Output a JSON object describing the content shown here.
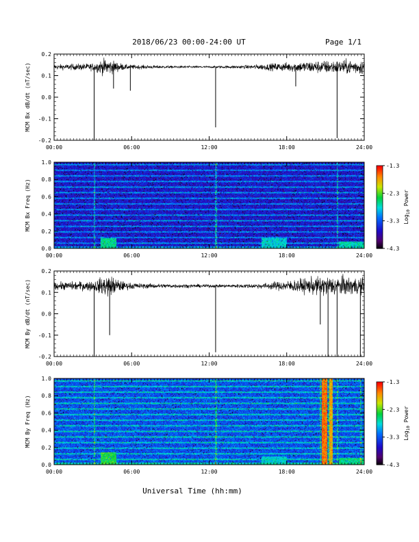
{
  "header": {
    "title": "2018/06/23  00:00-24:00 UT",
    "page": "Page 1/1"
  },
  "footer": {
    "xlabel": "Universal Time (hh:mm)"
  },
  "time_ticks": [
    "00:00",
    "06:00",
    "12:00",
    "18:00",
    "24:00"
  ],
  "colorbar": {
    "label_main": "Log",
    "label_sub": "10",
    "label_end": " Power",
    "ticks": [
      "-1.3",
      "-2.3",
      "-3.3",
      "-4.3"
    ],
    "range": [
      -4.3,
      -1.3
    ]
  },
  "chart_data": [
    {
      "type": "line",
      "ylabel": "MCM Bx dB/dt (nT/sec)",
      "x_unit": "hours UT",
      "xlim": [
        0,
        24
      ],
      "ylim": [
        -0.2,
        0.2
      ],
      "yticks": [
        "0.2",
        "0.1",
        "0.0",
        "-0.1",
        "-0.2"
      ],
      "baseline": 0.14,
      "noise_envelope": [
        {
          "x": 0,
          "amp": 0.02
        },
        {
          "x": 3,
          "amp": 0.03
        },
        {
          "x": 4,
          "amp": 0.07
        },
        {
          "x": 5.5,
          "amp": 0.02
        },
        {
          "x": 7,
          "amp": 0.015
        },
        {
          "x": 9,
          "amp": 0.01
        },
        {
          "x": 12,
          "amp": 0.008
        },
        {
          "x": 15,
          "amp": 0.015
        },
        {
          "x": 17,
          "amp": 0.03
        },
        {
          "x": 20,
          "amp": 0.05
        },
        {
          "x": 24,
          "amp": 0.06
        }
      ],
      "spikes": [
        {
          "x": 3.1,
          "y": -0.21
        },
        {
          "x": 4.6,
          "y": 0.04
        },
        {
          "x": 5.9,
          "y": 0.03
        },
        {
          "x": 12.5,
          "y": -0.14
        },
        {
          "x": 18.7,
          "y": 0.05
        },
        {
          "x": 21.9,
          "y": -0.19
        }
      ]
    },
    {
      "type": "heatmap",
      "ylabel": "MCM Bx Freq (Hz)",
      "xlim": [
        0,
        24
      ],
      "ylim": [
        0,
        1.0
      ],
      "yticks": [
        "1.0",
        "0.8",
        "0.6",
        "0.4",
        "0.2",
        "0.0"
      ],
      "zlabel": "Log10 Power",
      "zlim": [
        -4.3,
        -1.3
      ],
      "background_level": -3.6,
      "harmonic_lines_hz": [
        0.065,
        0.13,
        0.195,
        0.26,
        0.325,
        0.39,
        0.455,
        0.52,
        0.585,
        0.65,
        0.715,
        0.78,
        0.845,
        0.91,
        0.975
      ],
      "low_freq_enhancements": [
        {
          "x_center": 4.2,
          "x_width": 1.2,
          "max_hz": 0.12,
          "level": -2.6
        },
        {
          "x_center": 17.0,
          "x_width": 2.0,
          "max_hz": 0.12,
          "level": -2.8
        },
        {
          "x_center": 23.0,
          "x_width": 2.0,
          "max_hz": 0.08,
          "level": -2.7
        }
      ],
      "broadband_streaks": [
        3.1,
        12.5,
        21.9
      ]
    },
    {
      "type": "line",
      "ylabel": "MCM By dB/dt (nT/sec)",
      "x_unit": "hours UT",
      "xlim": [
        0,
        24
      ],
      "ylim": [
        -0.2,
        0.2
      ],
      "yticks": [
        "0.2",
        "0.1",
        "0.0",
        "-0.1",
        "-0.2"
      ],
      "baseline": 0.13,
      "noise_envelope": [
        {
          "x": 0,
          "amp": 0.03
        },
        {
          "x": 3,
          "amp": 0.04
        },
        {
          "x": 4.2,
          "amp": 0.09
        },
        {
          "x": 5.5,
          "amp": 0.03
        },
        {
          "x": 7,
          "amp": 0.02
        },
        {
          "x": 10,
          "amp": 0.015
        },
        {
          "x": 13,
          "amp": 0.012
        },
        {
          "x": 16,
          "amp": 0.02
        },
        {
          "x": 18.5,
          "amp": 0.05
        },
        {
          "x": 21,
          "amp": 0.08
        },
        {
          "x": 24,
          "amp": 0.07
        }
      ],
      "spikes": [
        {
          "x": 3.1,
          "y": -0.21
        },
        {
          "x": 4.3,
          "y": -0.1
        },
        {
          "x": 12.5,
          "y": -0.18
        },
        {
          "x": 20.6,
          "y": -0.05
        },
        {
          "x": 21.2,
          "y": -0.21
        },
        {
          "x": 21.9,
          "y": -0.21
        },
        {
          "x": 23.7,
          "y": -0.21
        }
      ]
    },
    {
      "type": "heatmap",
      "ylabel": "MCM By Freq (Hz)",
      "xlim": [
        0,
        24
      ],
      "ylim": [
        0,
        1.0
      ],
      "yticks": [
        "1.0",
        "0.8",
        "0.6",
        "0.4",
        "0.2",
        "0.0"
      ],
      "zlabel": "Log10 Power",
      "zlim": [
        -4.3,
        -1.3
      ],
      "background_level": -3.3,
      "harmonic_lines_hz": [
        0.065,
        0.13,
        0.195,
        0.26,
        0.325,
        0.39,
        0.455,
        0.52,
        0.585,
        0.65,
        0.715,
        0.78,
        0.845,
        0.91,
        0.975
      ],
      "low_freq_enhancements": [
        {
          "x_center": 4.2,
          "x_width": 1.2,
          "max_hz": 0.15,
          "level": -2.4
        },
        {
          "x_center": 17.0,
          "x_width": 2.0,
          "max_hz": 0.1,
          "level": -2.8
        },
        {
          "x_center": 23.0,
          "x_width": 2.0,
          "max_hz": 0.08,
          "level": -2.6
        }
      ],
      "broadband_streaks": [
        3.1,
        12.5,
        20.6,
        21.2,
        21.9,
        23.7
      ],
      "bursts": [
        {
          "x_center": 20.9,
          "x_width": 0.4,
          "level": -1.6
        },
        {
          "x_center": 21.4,
          "x_width": 0.3,
          "level": -1.8
        }
      ]
    }
  ]
}
